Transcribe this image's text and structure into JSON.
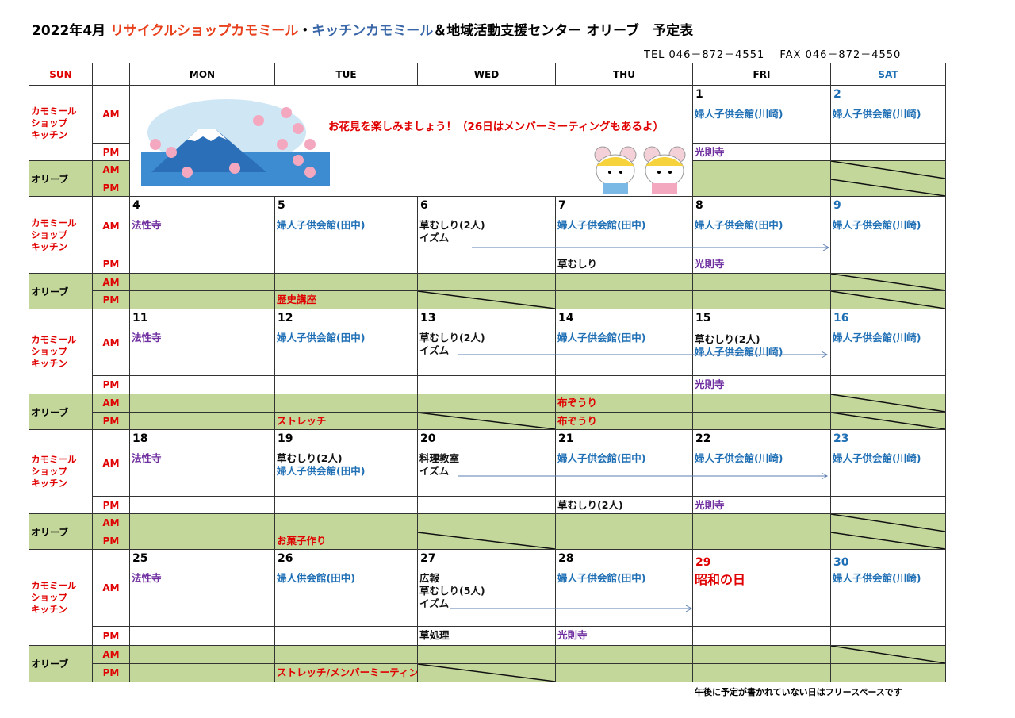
{
  "title": {
    "prefix": "2022年4月 ",
    "shop": "リサイクルショップカモミール",
    "dot": "・",
    "kitchen": "キッチンカモミール",
    "rest": "＆地域活動支援センター オリーブ　予定表"
  },
  "contact": "TEL 046－872－4551　 FAX 046－872－4550",
  "days": [
    "SUN",
    "",
    "MON",
    "TUE",
    "WED",
    "THU",
    "FRI",
    "SAT"
  ],
  "row_labels": {
    "chamomile": "カモミール\nショップ\nキッチン",
    "olive": "オリーブ",
    "am": "AM",
    "pm": "PM"
  },
  "banner": {
    "text": "お花見を楽しみましょう！（26日はメンバーミーティングもあるよ）",
    "image": "mt-fuji-cherry-blossom",
    "mascots": "two-mice-with-yellow-hats"
  },
  "colors": {
    "red": "#e00000",
    "blue": "#1f6fb5",
    "purple": "#7030a0",
    "olive_bg": "#c4d79b"
  },
  "weeks": [
    {
      "banner": true,
      "days": [
        null,
        null,
        null,
        null,
        {
          "date": "1",
          "date_color": "black",
          "am": [
            {
              "text": "婦人子供会館(川崎)",
              "color": "blue"
            }
          ],
          "pm": [
            {
              "text": "光則寺",
              "color": "purple"
            }
          ],
          "oam": [],
          "opm": []
        },
        {
          "date": "2",
          "date_color": "blue",
          "am": [
            {
              "text": "婦人子供会館(川崎)",
              "color": "blue"
            }
          ],
          "pm": [],
          "oam": [],
          "opm": [],
          "oam_struck": true,
          "opm_struck": true
        }
      ]
    },
    {
      "days": [
        {
          "date": "4",
          "am": [
            {
              "text": "法性寺",
              "color": "purple"
            }
          ],
          "pm": [],
          "oam": [],
          "opm": [
            {
              "text": "",
              "color": "black"
            }
          ]
        },
        {
          "date": "5",
          "am": [
            {
              "text": "婦人子供会館(田中)",
              "color": "blue"
            }
          ],
          "pm": [],
          "oam": [],
          "opm": [
            {
              "text": "歴史講座",
              "color": "red"
            }
          ]
        },
        {
          "date": "6",
          "am": [
            {
              "text": "草むしり(2人)",
              "color": "black"
            },
            {
              "text": "イズム",
              "color": "black"
            }
          ],
          "pm": [],
          "oam": [],
          "opm": [],
          "opm_struck": true
        },
        {
          "date": "7",
          "am": [
            {
              "text": "婦人子供会館(田中)",
              "color": "blue"
            }
          ],
          "pm": [
            {
              "text": "草むしり",
              "color": "black"
            }
          ],
          "oam": [],
          "opm": []
        },
        {
          "date": "8",
          "am": [
            {
              "text": "婦人子供会館(田中)",
              "color": "blue"
            }
          ],
          "pm": [
            {
              "text": "光則寺",
              "color": "purple"
            }
          ],
          "oam": [],
          "opm": []
        },
        {
          "date": "9",
          "date_color": "blue",
          "am": [
            {
              "text": "婦人子供会館(川崎)",
              "color": "blue"
            }
          ],
          "pm": [],
          "oam": [],
          "opm": [],
          "oam_struck": true,
          "opm_struck": true
        }
      ]
    },
    {
      "days": [
        {
          "date": "11",
          "am": [
            {
              "text": "法性寺",
              "color": "purple"
            }
          ],
          "pm": [],
          "oam": [],
          "opm": []
        },
        {
          "date": "12",
          "am": [
            {
              "text": "婦人子供会館(田中)",
              "color": "blue"
            }
          ],
          "pm": [],
          "oam": [],
          "opm": [
            {
              "text": "ストレッチ",
              "color": "red"
            }
          ]
        },
        {
          "date": "13",
          "am": [
            {
              "text": "草むしり(2人)",
              "color": "black"
            },
            {
              "text": "イズム",
              "color": "black"
            }
          ],
          "pm": [],
          "oam": [],
          "opm": [],
          "opm_struck": true
        },
        {
          "date": "14",
          "am": [
            {
              "text": "婦人子供会館(田中)",
              "color": "blue"
            }
          ],
          "pm": [],
          "oam": [
            {
              "text": "布ぞうり",
              "color": "red"
            }
          ],
          "opm": [
            {
              "text": "布ぞうり",
              "color": "red"
            }
          ]
        },
        {
          "date": "15",
          "am": [
            {
              "text": "草むしり(2人)",
              "color": "black"
            },
            {
              "text": "婦人子供会館(川崎)",
              "color": "blue"
            }
          ],
          "pm": [
            {
              "text": "光則寺",
              "color": "purple"
            }
          ],
          "oam": [],
          "opm": []
        },
        {
          "date": "16",
          "date_color": "blue",
          "am": [
            {
              "text": "婦人子供会館(川崎)",
              "color": "blue"
            }
          ],
          "pm": [],
          "oam": [],
          "opm": [],
          "oam_struck": true,
          "opm_struck": true
        }
      ]
    },
    {
      "days": [
        {
          "date": "18",
          "am": [
            {
              "text": "法性寺",
              "color": "purple"
            }
          ],
          "pm": [],
          "oam": [],
          "opm": []
        },
        {
          "date": "19",
          "am": [
            {
              "text": "草むしり(2人)",
              "color": "black"
            },
            {
              "text": "婦人子供会館(田中)",
              "color": "blue"
            }
          ],
          "pm": [],
          "oam": [],
          "opm": [
            {
              "text": "お菓子作り",
              "color": "red"
            }
          ]
        },
        {
          "date": "20",
          "am": [
            {
              "text": "料理教室",
              "color": "black"
            },
            {
              "text": "イズム",
              "color": "black"
            }
          ],
          "pm": [],
          "oam": [],
          "opm": [],
          "opm_struck": true
        },
        {
          "date": "21",
          "am": [
            {
              "text": "婦人子供会館(田中)",
              "color": "blue"
            }
          ],
          "pm": [
            {
              "text": "草むしり(2人)",
              "color": "black"
            }
          ],
          "oam": [],
          "opm": []
        },
        {
          "date": "22",
          "am": [
            {
              "text": "婦人子供会館(川崎)",
              "color": "blue"
            }
          ],
          "pm": [
            {
              "text": "光則寺",
              "color": "purple"
            }
          ],
          "oam": [],
          "opm": []
        },
        {
          "date": "23",
          "date_color": "blue",
          "am": [
            {
              "text": "婦人子供会館(川崎)",
              "color": "blue"
            }
          ],
          "pm": [],
          "oam": [],
          "opm": [],
          "oam_struck": true,
          "opm_struck": true
        }
      ]
    },
    {
      "days": [
        {
          "date": "25",
          "am": [
            {
              "text": "法性寺",
              "color": "purple"
            }
          ],
          "pm": [],
          "oam": [],
          "opm": []
        },
        {
          "date": "26",
          "am": [
            {
              "text": "婦人供会館(田中)",
              "color": "blue"
            }
          ],
          "pm": [],
          "oam": [],
          "opm": [
            {
              "text": "ストレッチ/メンバーミーティング",
              "color": "red"
            }
          ]
        },
        {
          "date": "27",
          "am": [
            {
              "text": "広報",
              "color": "black"
            },
            {
              "text": "草むしり(5人)",
              "color": "black"
            },
            {
              "text": "イズム",
              "color": "black"
            }
          ],
          "pm": [
            {
              "text": "草処理",
              "color": "black"
            }
          ],
          "oam": [],
          "opm": [],
          "opm_struck": true
        },
        {
          "date": "28",
          "am": [
            {
              "text": "婦人子供会館(田中)",
              "color": "blue"
            }
          ],
          "pm": [
            {
              "text": "光則寺",
              "color": "purple"
            }
          ],
          "oam": [],
          "opm": []
        },
        {
          "date": "29",
          "date_color": "red",
          "am": [
            {
              "text": "昭和の日",
              "color": "red",
              "big": true
            }
          ],
          "pm": [],
          "oam": [],
          "opm": []
        },
        {
          "date": "30",
          "date_color": "blue",
          "am": [
            {
              "text": "婦人子供会館(川崎)",
              "color": "blue"
            }
          ],
          "pm": [],
          "oam": [],
          "opm": [],
          "oam_struck": true
        }
      ]
    }
  ],
  "note": "午後に予定が書かれていない日はフリースペースです"
}
